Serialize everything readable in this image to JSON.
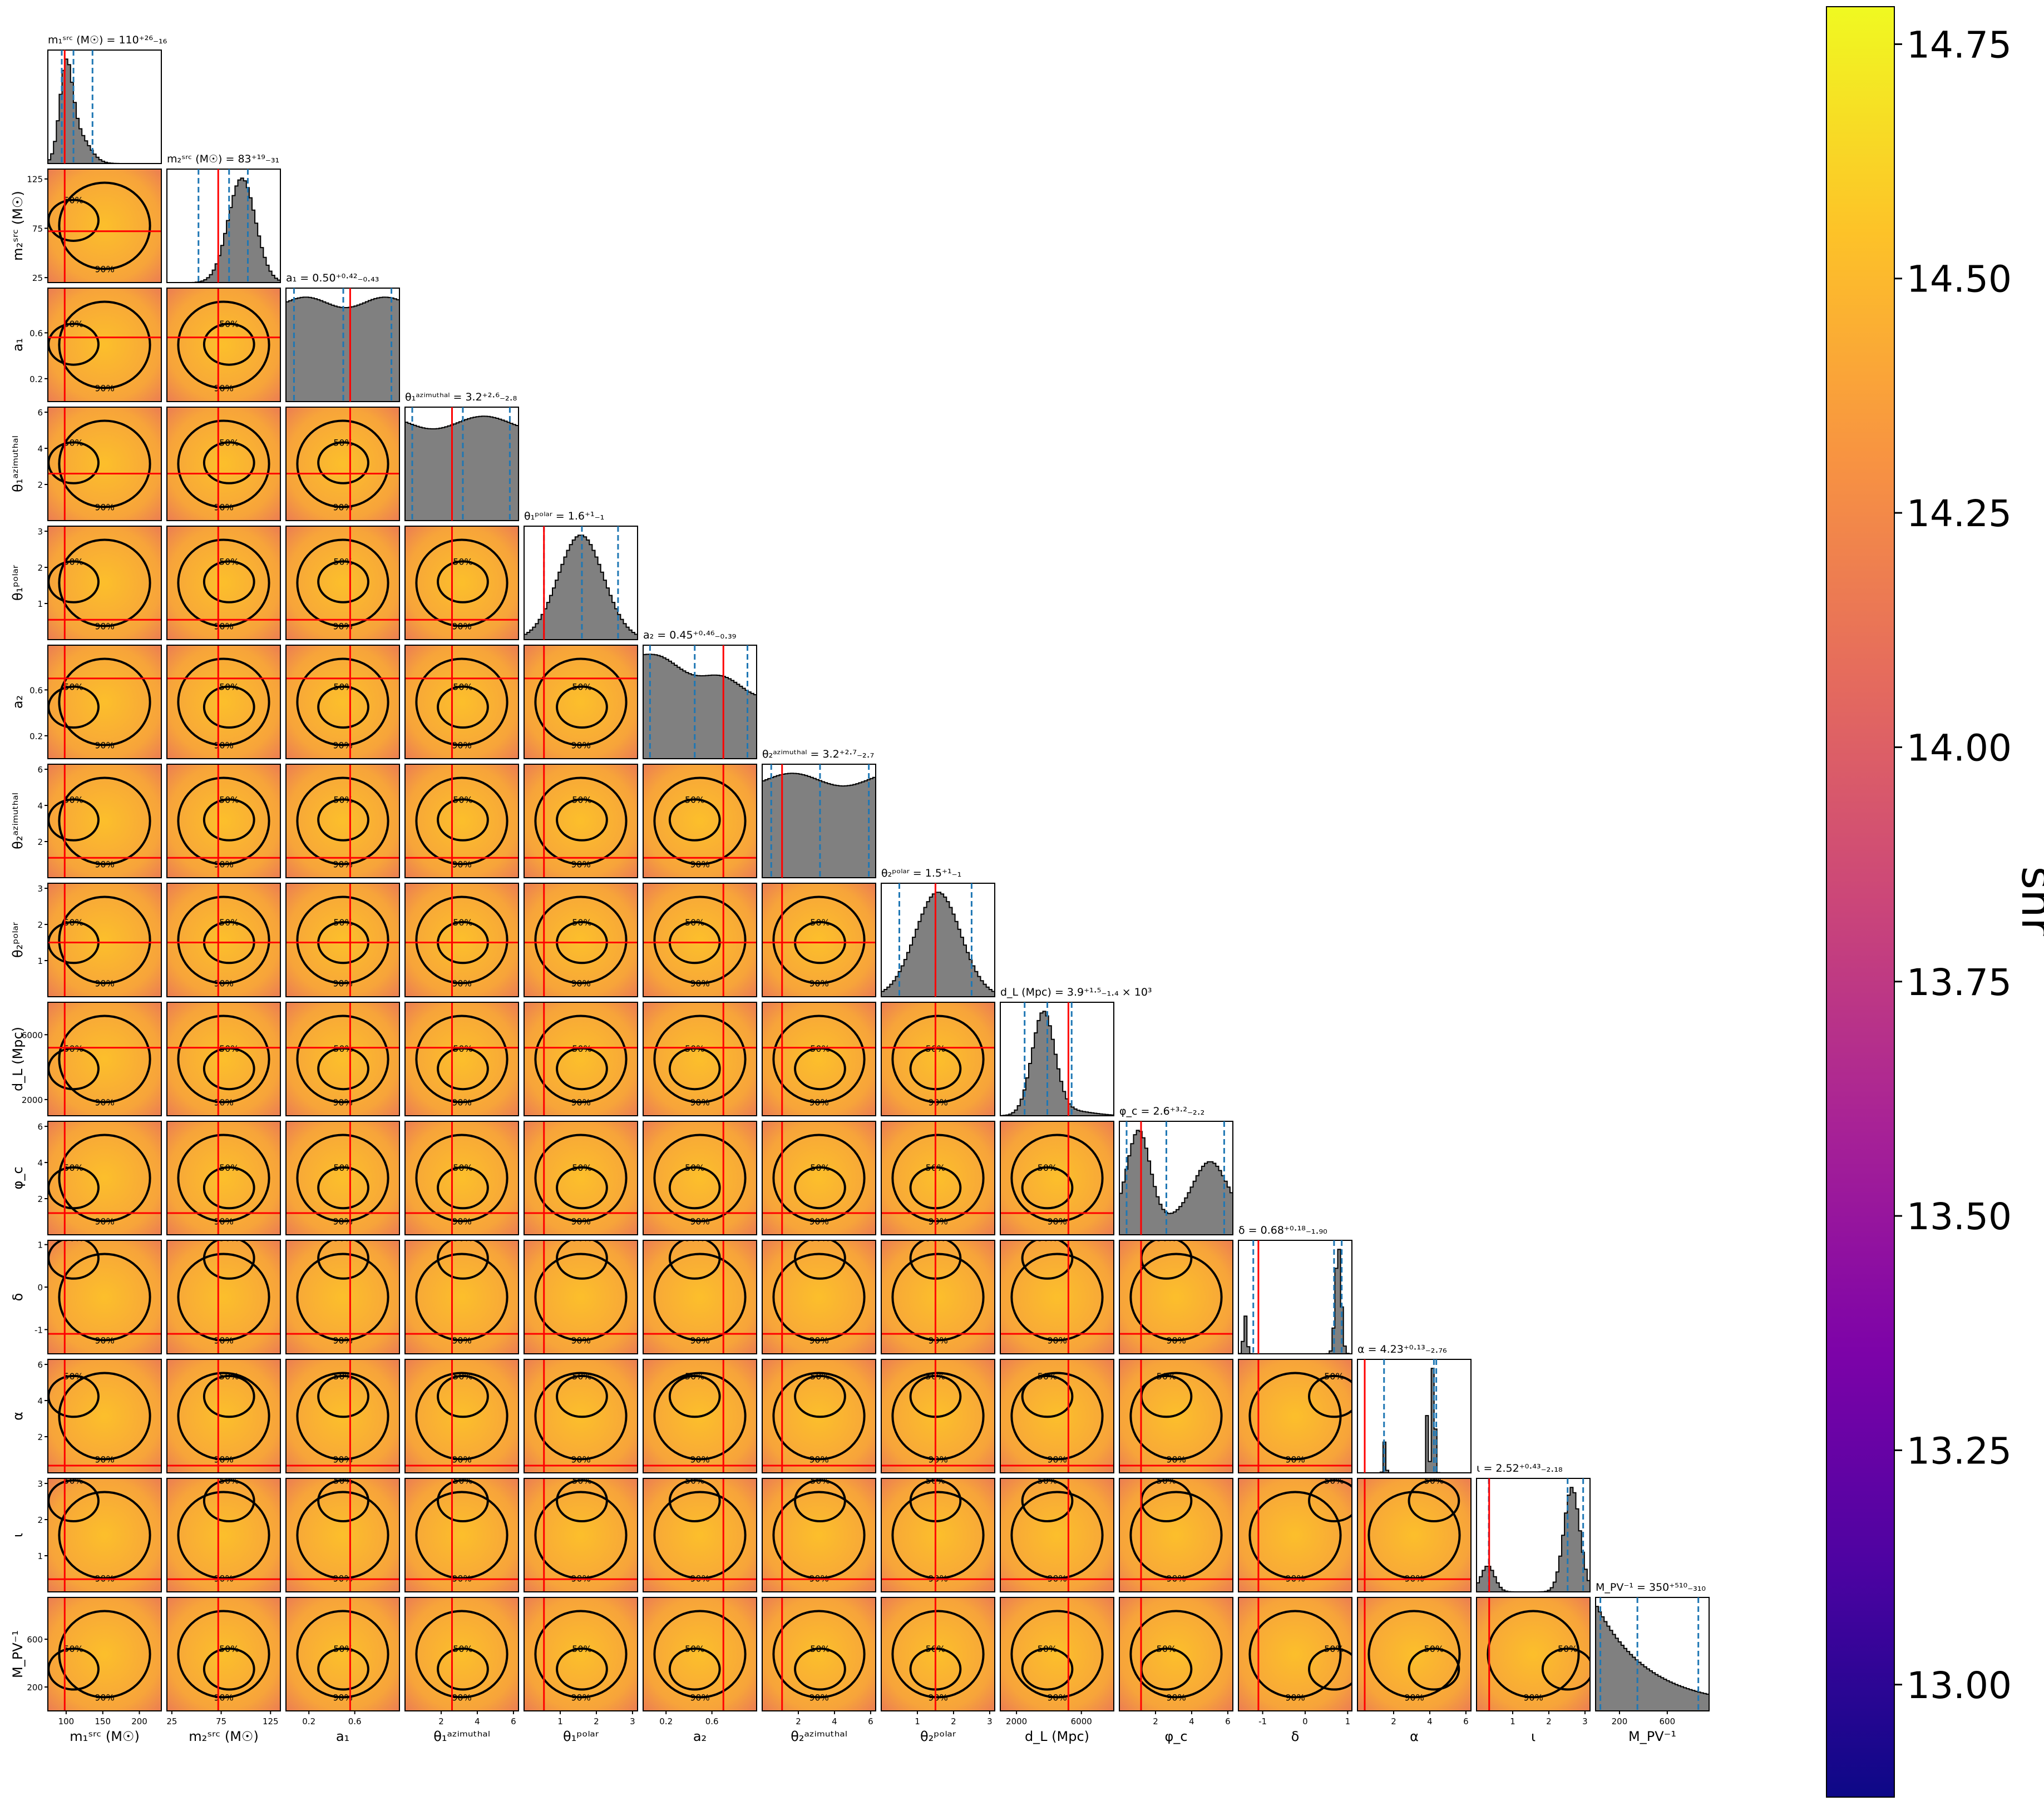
{
  "chart_data": {
    "type": "corner",
    "params": [
      {
        "key": "m1src",
        "label": "m₁ˢʳᶜ (M☉)",
        "title": "m₁ˢʳᶜ (M☉) = 110⁺²⁶₋₁₆",
        "median": 110,
        "lo": 94,
        "hi": 136,
        "truth": 98,
        "range": [
          75,
          230
        ],
        "ticks": [
          100,
          150,
          200
        ]
      },
      {
        "key": "m2src",
        "label": "m₂ˢʳᶜ (M☉)",
        "title": "m₂ˢʳᶜ (M☉) = 83⁺¹⁹₋₃₁",
        "median": 83,
        "lo": 52,
        "hi": 102,
        "truth": 72,
        "range": [
          20,
          135
        ],
        "ticks": [
          25,
          75,
          125
        ]
      },
      {
        "key": "a1",
        "label": "a₁",
        "title": "a₁ = 0.50⁺⁰·⁴²₋₀.₄₃",
        "median": 0.5,
        "lo": 0.07,
        "hi": 0.92,
        "truth": 0.56,
        "range": [
          0,
          0.99
        ],
        "ticks": [
          0.2,
          0.6
        ]
      },
      {
        "key": "theta1az",
        "label": "θ₁ᵃᶻⁱᵐᵘᵗʰᵃˡ",
        "title": "θ₁ᵃᶻⁱᵐᵘᵗʰᵃˡ = 3.2⁺²·⁶₋₂.₈",
        "median": 3.2,
        "lo": 0.4,
        "hi": 5.8,
        "truth": 2.6,
        "range": [
          0,
          6.28
        ],
        "ticks": [
          2,
          4,
          6
        ]
      },
      {
        "key": "theta1pol",
        "label": "θ₁ᵖᵒˡᵃʳ",
        "title": "θ₁ᵖᵒˡᵃʳ = 1.6⁺¹₋₁",
        "median": 1.6,
        "lo": 0.55,
        "hi": 2.6,
        "truth": 0.55,
        "range": [
          0,
          3.14
        ],
        "ticks": [
          1,
          2,
          3
        ]
      },
      {
        "key": "a2",
        "label": "a₂",
        "title": "a₂ = 0.45⁺⁰·⁴⁶₋₀.₃₉",
        "median": 0.45,
        "lo": 0.06,
        "hi": 0.91,
        "truth": 0.7,
        "range": [
          0,
          0.99
        ],
        "ticks": [
          0.2,
          0.6
        ]
      },
      {
        "key": "theta2az",
        "label": "θ₂ᵃᶻⁱᵐᵘᵗʰᵃˡ",
        "title": "θ₂ᵃᶻⁱᵐᵘᵗʰᵃˡ = 3.2⁺²·⁷₋₂.₇",
        "median": 3.2,
        "lo": 0.5,
        "hi": 5.9,
        "truth": 1.1,
        "range": [
          0,
          6.28
        ],
        "ticks": [
          2,
          4,
          6
        ]
      },
      {
        "key": "theta2pol",
        "label": "θ₂ᵖᵒˡᵃʳ",
        "title": "θ₂ᵖᵒˡᵃʳ = 1.5⁺¹₋₁",
        "median": 1.5,
        "lo": 0.5,
        "hi": 2.5,
        "truth": 1.5,
        "range": [
          0,
          3.14
        ],
        "ticks": [
          1,
          2,
          3
        ]
      },
      {
        "key": "dL",
        "label": "d_L (Mpc)",
        "title": "d_L (Mpc) = 3.9⁺¹·⁵₋₁.₄ × 10³",
        "median": 3900,
        "lo": 2500,
        "hi": 5400,
        "truth": 5200,
        "range": [
          1000,
          8000
        ],
        "ticks": [
          2000,
          6000
        ]
      },
      {
        "key": "phic",
        "label": "φ_c",
        "title": "φ_c = 2.6⁺³·²₋₂.₂",
        "median": 2.6,
        "lo": 0.4,
        "hi": 5.8,
        "truth": 1.2,
        "range": [
          0,
          6.28
        ],
        "ticks": [
          2,
          4,
          6
        ]
      },
      {
        "key": "delta",
        "label": "δ",
        "title": "δ = 0.68⁺⁰·¹⁸₋₁.₉₀",
        "median": 0.68,
        "lo": -1.22,
        "hi": 0.86,
        "truth": -1.1,
        "range": [
          -1.57,
          1.1
        ],
        "ticks": [
          -1,
          0,
          1
        ]
      },
      {
        "key": "alpha",
        "label": "α",
        "title": "α = 4.23⁺⁰·¹³₋₂.₇₆",
        "median": 4.23,
        "lo": 1.47,
        "hi": 4.36,
        "truth": 0.4,
        "range": [
          0,
          6.28
        ],
        "ticks": [
          2,
          4,
          6
        ]
      },
      {
        "key": "iota",
        "label": "ι",
        "title": "ι = 2.52⁺⁰·⁴³₋₂.₁₈",
        "median": 2.52,
        "lo": 0.34,
        "hi": 2.95,
        "truth": 0.35,
        "range": [
          0,
          3.14
        ],
        "ticks": [
          1,
          2,
          3
        ]
      },
      {
        "key": "mpv",
        "label": "M_PV⁻¹",
        "title": "M_PV⁻¹ = 350⁺⁵¹⁰₋₃₁₀",
        "median": 350,
        "lo": 40,
        "hi": 860,
        "truth": null,
        "range": [
          0,
          950
        ],
        "ticks": [
          200,
          600
        ]
      }
    ],
    "contour_labels": [
      "50%",
      "90%"
    ],
    "colorbar": {
      "label": "snr",
      "colormap": "plasma",
      "range": [
        12.88,
        14.79
      ],
      "ticks": [
        13.0,
        13.25,
        13.5,
        13.75,
        14.0,
        14.25,
        14.5,
        14.75
      ],
      "tick_labels": [
        "13.00",
        "13.25",
        "13.50",
        "13.75",
        "14.00",
        "14.25",
        "14.50",
        "14.75"
      ]
    },
    "colors": {
      "hist_fill": "#808080",
      "quantile_line": "#1f77b4",
      "truth_line": "#ff0000",
      "contour": "#000000"
    }
  }
}
